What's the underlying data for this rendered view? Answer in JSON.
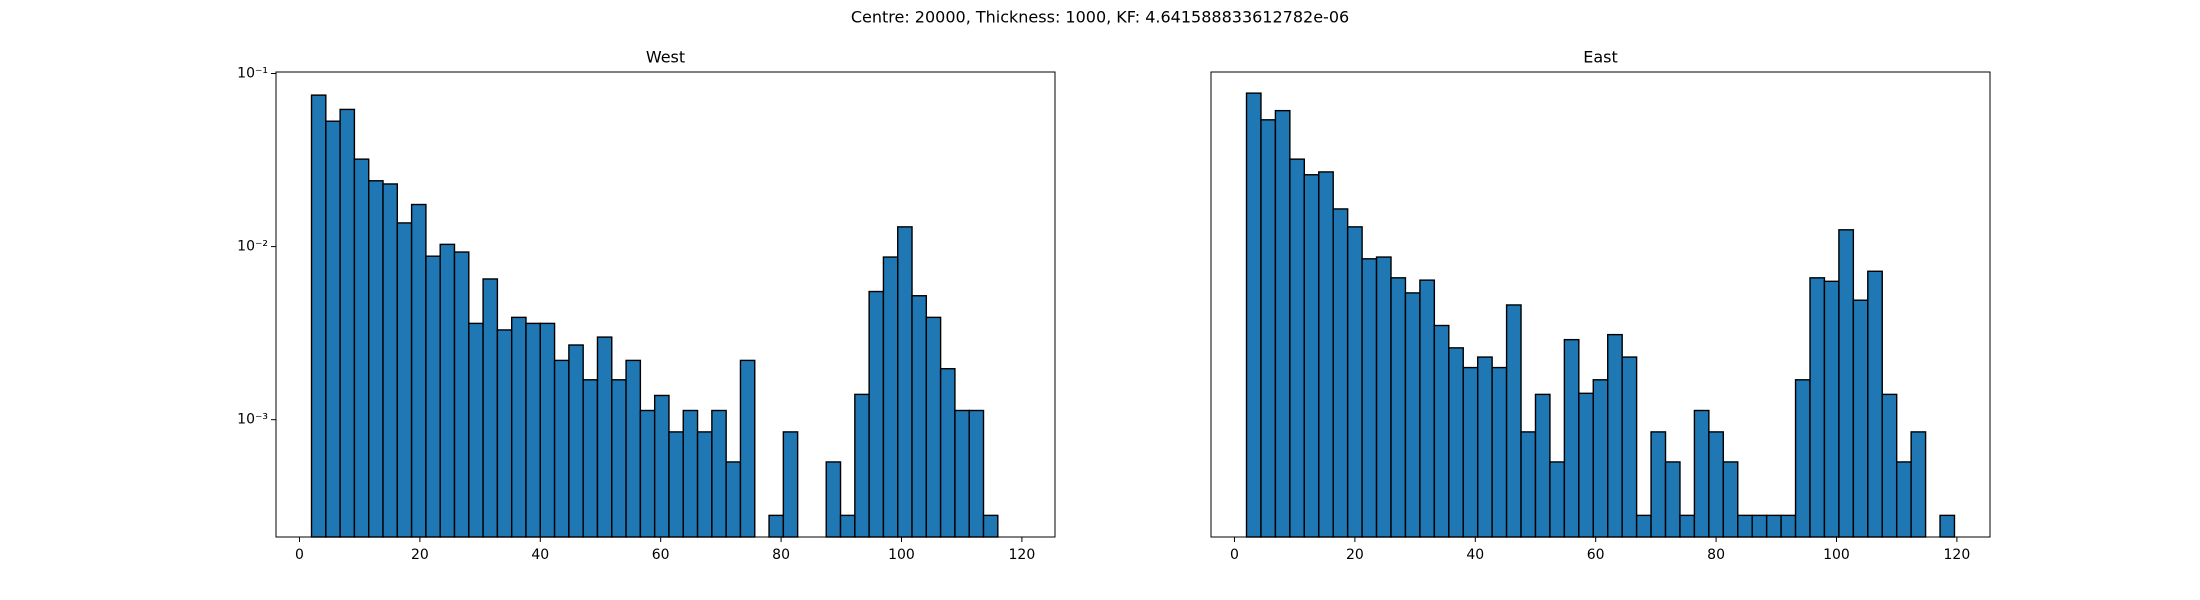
{
  "title": "Centre: 20000, Thickness: 1000, KF: 4.641588833612782e-06",
  "chart_data": [
    {
      "type": "histogram",
      "title": "West",
      "color": "#1f77b4",
      "edgecolor": "#000000",
      "log_y": true,
      "bins": [
        2,
        4.375,
        6.75,
        9.125,
        11.5,
        13.875,
        16.25,
        18.625,
        21,
        23.375,
        25.75,
        28.125,
        30.5,
        32.875,
        35.25,
        37.625,
        40,
        42.375,
        44.75,
        47.125,
        49.5,
        51.875,
        54.25,
        56.625,
        59,
        61.375,
        63.75,
        66.125,
        68.5,
        70.875,
        73.25,
        75.625,
        78,
        80.375,
        82.75,
        85.125,
        87.5,
        89.875,
        92.25,
        94.625,
        97,
        99.375,
        101.75,
        104.125,
        106.5,
        108.875,
        111.25,
        113.625,
        116
      ],
      "values": [
        0.075,
        0.053,
        0.062,
        0.032,
        0.024,
        0.023,
        0.0137,
        0.0175,
        0.0088,
        0.0103,
        0.0093,
        0.0036,
        0.0065,
        0.0033,
        0.0039,
        0.0036,
        0.0036,
        0.0022,
        0.0027,
        0.0017,
        0.003,
        0.0017,
        0.0022,
        0.00113,
        0.00138,
        0.00085,
        0.00113,
        0.00085,
        0.00113,
        0.00057,
        0.0022,
        0,
        0.00028,
        0.00085,
        0,
        0,
        0.00057,
        0.00028,
        0.0014,
        0.0055,
        0.0087,
        0.013,
        0.0052,
        0.0039,
        0.00197,
        0.00113,
        0.00113,
        0.00028
      ],
      "xlim": [
        -3.9,
        125.5
      ],
      "xticks": [
        0,
        20,
        40,
        60,
        80,
        100,
        120
      ],
      "ylim": [
        0.00021,
        0.102
      ],
      "yticks": [
        {
          "value": 0.001,
          "label": "10⁻³"
        },
        {
          "value": 0.01,
          "label": "10⁻²"
        },
        {
          "value": 0.1,
          "label": "10⁻¹"
        }
      ]
    },
    {
      "type": "histogram",
      "title": "East",
      "color": "#1f77b4",
      "edgecolor": "#000000",
      "log_y": true,
      "bins": [
        2,
        4.4,
        6.8,
        9.2,
        11.6,
        14,
        16.4,
        18.8,
        21.2,
        23.6,
        26,
        28.4,
        30.8,
        33.2,
        35.6,
        38,
        40.4,
        42.8,
        45.2,
        47.6,
        50,
        52.4,
        54.8,
        57.2,
        59.6,
        62,
        64.4,
        66.8,
        69.2,
        71.6,
        74,
        76.4,
        78.8,
        81.2,
        83.6,
        86,
        88.4,
        90.8,
        93.2,
        95.6,
        98,
        100.4,
        102.8,
        105.2,
        107.6,
        110,
        112.4,
        114.8,
        117.2,
        119.6
      ],
      "values": [
        0.077,
        0.054,
        0.061,
        0.032,
        0.026,
        0.027,
        0.0165,
        0.013,
        0.0085,
        0.0087,
        0.0066,
        0.0054,
        0.0064,
        0.0035,
        0.0026,
        0.002,
        0.0023,
        0.002,
        0.0046,
        0.00085,
        0.0014,
        0.00057,
        0.0029,
        0.00142,
        0.0017,
        0.0031,
        0.0023,
        0.00028,
        0.00085,
        0.00057,
        0.00028,
        0.00113,
        0.00085,
        0.00057,
        0.00028,
        0.00028,
        0.00028,
        0.00028,
        0.0017,
        0.0066,
        0.0063,
        0.0125,
        0.0049,
        0.0072,
        0.0014,
        0.00057,
        0.00085,
        0,
        0.00028
      ],
      "xlim": [
        -3.9,
        125.5
      ],
      "xticks": [
        0,
        20,
        40,
        60,
        80,
        100,
        120
      ],
      "ylim": [
        0.00021,
        0.102
      ]
    }
  ]
}
